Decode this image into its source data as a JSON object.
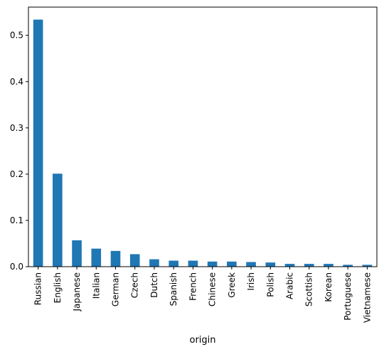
{
  "chart_data": {
    "type": "bar",
    "categories": [
      "Russian",
      "English",
      "Japanese",
      "Italian",
      "German",
      "Czech",
      "Dutch",
      "Spanish",
      "French",
      "Chinese",
      "Greek",
      "Irish",
      "Polish",
      "Arabic",
      "Scottish",
      "Korean",
      "Portuguese",
      "Vietnamese"
    ],
    "values": [
      0.534,
      0.201,
      0.057,
      0.039,
      0.034,
      0.027,
      0.016,
      0.013,
      0.013,
      0.011,
      0.011,
      0.01,
      0.009,
      0.006,
      0.006,
      0.006,
      0.004,
      0.004
    ],
    "xlabel": "origin",
    "ylabel": "",
    "ylim": [
      0,
      0.561
    ],
    "yticks": [
      "0.0",
      "0.1",
      "0.2",
      "0.3",
      "0.4",
      "0.5"
    ],
    "bar_color": "#1f77b4",
    "grid": false,
    "legend": "none"
  }
}
